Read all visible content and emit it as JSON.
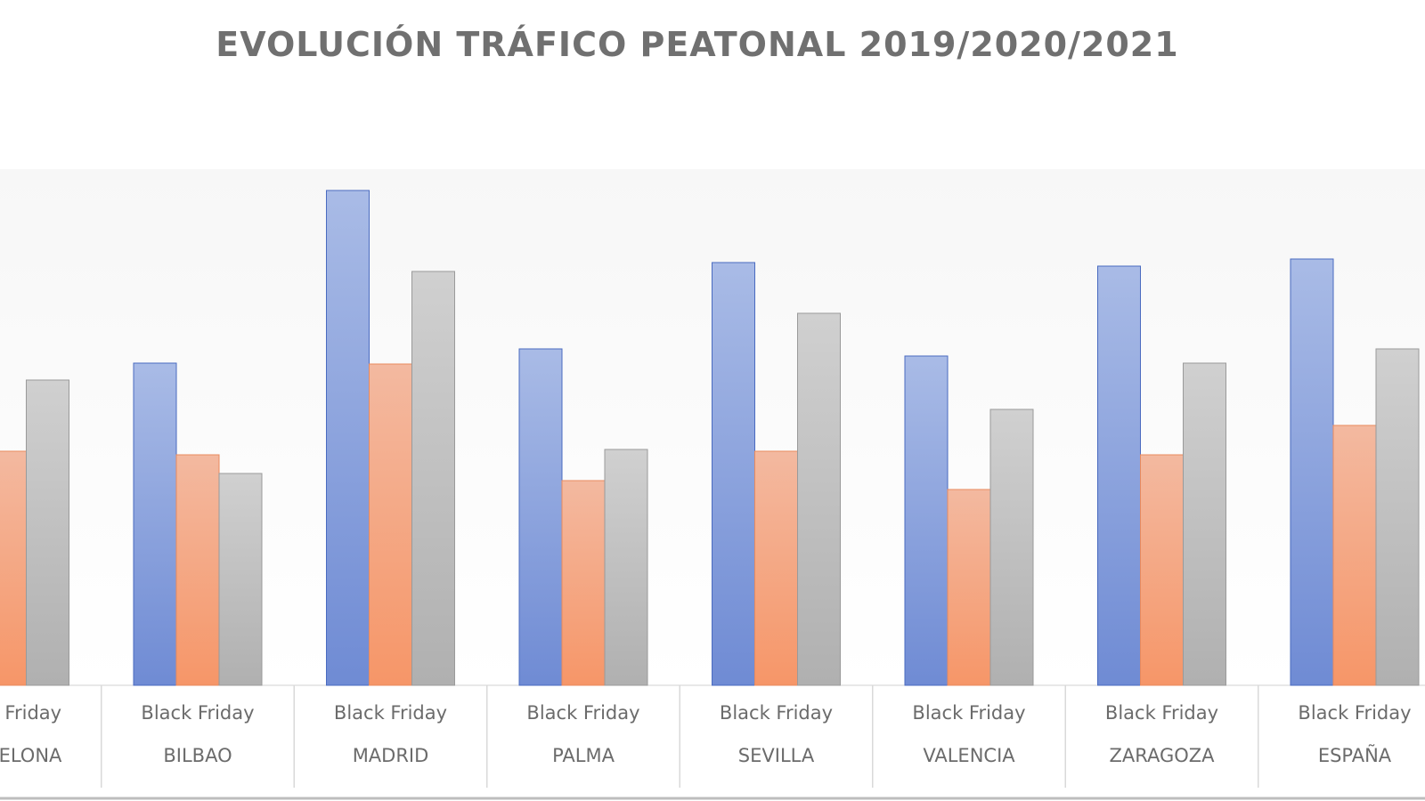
{
  "chart_data": {
    "type": "bar",
    "title": "EVOLUCIÓN TRÁFICO PEATONAL 2019/2020/2021",
    "xlabel": "",
    "ylabel": "",
    "grid": false,
    "value_units": "relative (no axis shown)",
    "ylim": [
      0,
      600
    ],
    "sub_label": "Black Friday",
    "categories": [
      "BARCELONA",
      "BILBAO",
      "MADRID",
      "PALMA",
      "SEVILLA",
      "VALENCIA",
      "ZARAGOZA",
      "ESPAÑA"
    ],
    "series": [
      {
        "color": "#7b96d8",
        "values": [
          null,
          362,
          556,
          378,
          475,
          370,
          471,
          479
        ]
      },
      {
        "color": "#f4a07c",
        "values": [
          263,
          259,
          361,
          230,
          263,
          220,
          259,
          292
        ]
      },
      {
        "color": "#b9b9b9",
        "values": [
          343,
          238,
          465,
          265,
          418,
          310,
          362,
          378
        ]
      }
    ]
  }
}
